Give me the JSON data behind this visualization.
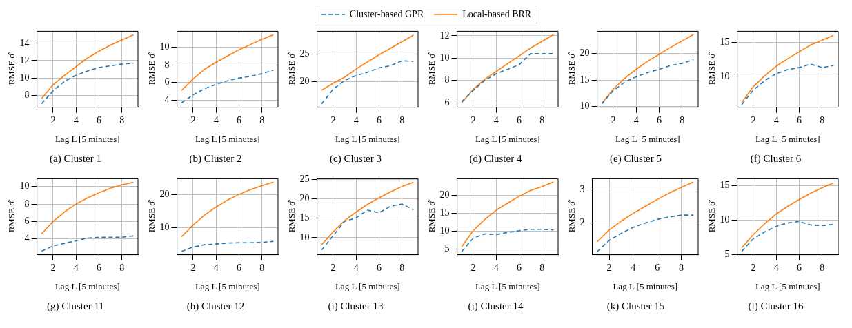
{
  "chart_data": [
    {
      "type": "line",
      "title": "(a) Cluster 1",
      "xlabel": "Lag L [5 minutes]",
      "ylabel": "RMSE σ̂",
      "x": [
        1,
        2,
        3,
        4,
        5,
        6,
        7,
        8,
        9
      ],
      "xlim": [
        0.6,
        9.4
      ],
      "xticks": [
        2,
        4,
        6,
        8
      ],
      "ylim": [
        6.6,
        15.4
      ],
      "yticks": [
        8,
        10,
        12,
        14
      ],
      "grid": true,
      "legend": "top",
      "marker": "none",
      "series": [
        {
          "name": "Cluster-based GPR",
          "color": "#1f77b4",
          "line_style": "dashed",
          "values": [
            7.0,
            8.5,
            9.6,
            10.3,
            10.8,
            11.2,
            11.4,
            11.6,
            11.7
          ]
        },
        {
          "name": "Local-based BRR",
          "color": "#ff7f0e",
          "line_style": "solid",
          "values": [
            7.6,
            9.2,
            10.3,
            11.3,
            12.3,
            13.1,
            13.8,
            14.4,
            15.0
          ]
        }
      ]
    },
    {
      "type": "line",
      "title": "(b) Cluster 2",
      "xlabel": "Lag L [5 minutes]",
      "ylabel": "RMSE σ̂",
      "x": [
        1,
        2,
        3,
        4,
        5,
        6,
        7,
        8,
        9
      ],
      "xlim": [
        0.6,
        9.4
      ],
      "xticks": [
        2,
        4,
        6,
        8
      ],
      "ylim": [
        3.2,
        11.8
      ],
      "yticks": [
        4,
        6,
        8,
        10
      ],
      "grid": true,
      "marker": "none",
      "series": [
        {
          "color": "#1f77b4",
          "line_style": "dashed",
          "values": [
            3.7,
            4.6,
            5.3,
            5.8,
            6.2,
            6.5,
            6.7,
            7.0,
            7.4
          ]
        },
        {
          "color": "#ff7f0e",
          "line_style": "solid",
          "values": [
            5.1,
            6.4,
            7.5,
            8.3,
            9.0,
            9.7,
            10.3,
            10.9,
            11.4
          ]
        }
      ]
    },
    {
      "type": "line",
      "title": "(c) Cluster 3",
      "xlabel": "Lag L [5 minutes]",
      "ylabel": "RMSE σ̂",
      "x": [
        1,
        2,
        3,
        4,
        5,
        6,
        7,
        8,
        9
      ],
      "xlim": [
        0.6,
        9.4
      ],
      "xticks": [
        2,
        4,
        6,
        8
      ],
      "ylim": [
        15.3,
        29.2
      ],
      "yticks": [
        20,
        25
      ],
      "grid": true,
      "marker": "none",
      "series": [
        {
          "color": "#1f77b4",
          "line_style": "dashed",
          "values": [
            15.9,
            18.6,
            20.2,
            21.1,
            21.7,
            22.5,
            22.9,
            23.8,
            23.7
          ]
        },
        {
          "color": "#ff7f0e",
          "line_style": "solid",
          "values": [
            18.4,
            19.7,
            20.8,
            22.3,
            23.6,
            24.9,
            26.1,
            27.3,
            28.5
          ]
        }
      ]
    },
    {
      "type": "line",
      "title": "(d) Cluster 4",
      "xlabel": "Lag L [5 minutes]",
      "ylabel": "RMSE σ̂",
      "x": [
        1,
        2,
        3,
        4,
        5,
        6,
        7,
        8,
        9
      ],
      "xlim": [
        0.6,
        9.4
      ],
      "xticks": [
        2,
        4,
        6,
        8
      ],
      "ylim": [
        5.6,
        12.4
      ],
      "yticks": [
        6,
        8,
        10,
        12
      ],
      "grid": true,
      "marker": "none",
      "series": [
        {
          "color": "#1f77b4",
          "line_style": "dashed",
          "values": [
            6.1,
            7.1,
            8.0,
            8.6,
            9.0,
            9.4,
            10.4,
            10.4,
            10.4
          ]
        },
        {
          "color": "#ff7f0e",
          "line_style": "solid",
          "values": [
            6.0,
            7.2,
            8.1,
            8.8,
            9.5,
            10.2,
            10.9,
            11.5,
            12.1
          ]
        }
      ]
    },
    {
      "type": "line",
      "title": "(e) Cluster 5",
      "xlabel": "Lag L [5 minutes]",
      "ylabel": "RMSE σ̂",
      "x": [
        1,
        2,
        3,
        4,
        5,
        6,
        7,
        8,
        9
      ],
      "xlim": [
        0.6,
        9.4
      ],
      "xticks": [
        2,
        4,
        6,
        8
      ],
      "ylim": [
        9.9,
        24.1
      ],
      "yticks": [
        10,
        15,
        20
      ],
      "grid": true,
      "marker": "none",
      "series": [
        {
          "color": "#1f77b4",
          "line_style": "dashed",
          "values": [
            10.5,
            13.0,
            14.6,
            15.6,
            16.4,
            17.0,
            17.7,
            18.1,
            18.8
          ]
        },
        {
          "color": "#ff7f0e",
          "line_style": "solid",
          "values": [
            10.6,
            13.3,
            15.3,
            17.0,
            18.5,
            19.8,
            21.1,
            22.3,
            23.5
          ]
        }
      ]
    },
    {
      "type": "line",
      "title": "(f) Cluster 6",
      "xlabel": "Lag L [5 minutes]",
      "ylabel": "RMSE σ̂",
      "x": [
        1,
        2,
        3,
        4,
        5,
        6,
        7,
        8,
        9
      ],
      "xlim": [
        0.6,
        9.4
      ],
      "xticks": [
        2,
        4,
        6,
        8
      ],
      "ylim": [
        5.5,
        16.6
      ],
      "yticks": [
        10,
        15
      ],
      "grid": true,
      "marker": "none",
      "series": [
        {
          "color": "#1f77b4",
          "line_style": "dashed",
          "values": [
            5.9,
            8.0,
            9.4,
            10.4,
            11.0,
            11.3,
            11.8,
            11.3,
            11.6
          ]
        },
        {
          "color": "#ff7f0e",
          "line_style": "solid",
          "values": [
            6.2,
            8.5,
            10.1,
            11.5,
            12.6,
            13.6,
            14.6,
            15.3,
            16.0
          ]
        }
      ]
    },
    {
      "type": "line",
      "title": "(g) Cluster 11",
      "xlabel": "Lag L [5 minutes]",
      "ylabel": "RMSE σ̂",
      "x": [
        1,
        2,
        3,
        4,
        5,
        6,
        7,
        8,
        9
      ],
      "xlim": [
        0.6,
        9.4
      ],
      "xticks": [
        2,
        4,
        6,
        8
      ],
      "ylim": [
        2.2,
        10.9
      ],
      "yticks": [
        4,
        6,
        8,
        10
      ],
      "grid": true,
      "marker": "none",
      "series": [
        {
          "color": "#1f77b4",
          "line_style": "dashed",
          "values": [
            2.6,
            3.2,
            3.5,
            3.8,
            4.1,
            4.2,
            4.2,
            4.2,
            4.35
          ]
        },
        {
          "color": "#ff7f0e",
          "line_style": "solid",
          "values": [
            4.6,
            6.0,
            7.1,
            8.0,
            8.7,
            9.3,
            9.8,
            10.2,
            10.5
          ]
        }
      ]
    },
    {
      "type": "line",
      "title": "(h) Cluster 12",
      "xlabel": "Lag L [5 minutes]",
      "ylabel": "RMSE σ̂",
      "x": [
        1,
        2,
        3,
        4,
        5,
        6,
        7,
        8,
        9
      ],
      "xlim": [
        0.6,
        9.4
      ],
      "xticks": [
        2,
        4,
        6,
        8
      ],
      "ylim": [
        1.9,
        24.7
      ],
      "yticks": [
        10,
        20
      ],
      "grid": true,
      "marker": "none",
      "series": [
        {
          "color": "#1f77b4",
          "line_style": "dashed",
          "values": [
            2.9,
            4.2,
            4.9,
            5.1,
            5.4,
            5.5,
            5.5,
            5.6,
            5.9
          ]
        },
        {
          "color": "#ff7f0e",
          "line_style": "solid",
          "values": [
            7.3,
            10.8,
            13.8,
            16.2,
            18.3,
            20.0,
            21.4,
            22.6,
            23.7
          ]
        }
      ]
    },
    {
      "type": "line",
      "title": "(i) Cluster 13",
      "xlabel": "Lag L [5 minutes]",
      "ylabel": "RMSE σ̂",
      "x": [
        1,
        2,
        3,
        4,
        5,
        6,
        7,
        8,
        9
      ],
      "xlim": [
        0.6,
        9.4
      ],
      "xticks": [
        2,
        4,
        6,
        8
      ],
      "ylim": [
        5.6,
        25.2
      ],
      "yticks": [
        10,
        15,
        20,
        25
      ],
      "grid": true,
      "marker": "none",
      "series": [
        {
          "color": "#1f77b4",
          "line_style": "dashed",
          "values": [
            6.8,
            10.5,
            14.2,
            15.1,
            17.1,
            16.4,
            18.1,
            18.7,
            17.2
          ]
        },
        {
          "color": "#ff7f0e",
          "line_style": "solid",
          "values": [
            8.2,
            11.5,
            14.4,
            16.6,
            18.6,
            20.3,
            21.8,
            23.2,
            24.3
          ]
        }
      ]
    },
    {
      "type": "line",
      "title": "(j) Cluster 14",
      "xlabel": "Lag L [5 minutes]",
      "ylabel": "RMSE σ̂",
      "x": [
        1,
        2,
        3,
        4,
        5,
        6,
        7,
        8,
        9
      ],
      "xlim": [
        0.6,
        9.4
      ],
      "xticks": [
        2,
        4,
        6,
        8
      ],
      "ylim": [
        3.4,
        24.6
      ],
      "yticks": [
        5,
        10,
        15,
        20
      ],
      "grid": true,
      "marker": "none",
      "series": [
        {
          "color": "#1f77b4",
          "line_style": "dashed",
          "values": [
            4.3,
            8.0,
            9.2,
            9.0,
            9.6,
            10.1,
            10.5,
            10.5,
            10.3
          ]
        },
        {
          "color": "#ff7f0e",
          "line_style": "solid",
          "values": [
            5.6,
            10.1,
            13.2,
            15.8,
            17.8,
            19.7,
            21.3,
            22.4,
            23.7
          ]
        }
      ]
    },
    {
      "type": "line",
      "title": "(k) Cluster 15",
      "xlabel": "Lag L [5 minutes]",
      "ylabel": "RMSE σ̂",
      "x": [
        1,
        2,
        3,
        4,
        5,
        6,
        7,
        8,
        9
      ],
      "xlim": [
        0.6,
        9.4
      ],
      "xticks": [
        2,
        4,
        6,
        8
      ],
      "ylim": [
        1.04,
        3.32
      ],
      "yticks": [
        2,
        3
      ],
      "grid": true,
      "marker": "none",
      "series": [
        {
          "color": "#1f77b4",
          "line_style": "dashed",
          "values": [
            1.13,
            1.47,
            1.68,
            1.86,
            1.99,
            2.1,
            2.17,
            2.23,
            2.23
          ]
        },
        {
          "color": "#ff7f0e",
          "line_style": "solid",
          "values": [
            1.43,
            1.78,
            2.05,
            2.28,
            2.49,
            2.7,
            2.89,
            3.06,
            3.22
          ]
        }
      ]
    },
    {
      "type": "line",
      "title": "(l) Cluster 16",
      "xlabel": "Lag L [5 minutes]",
      "ylabel": "RMSE σ̂",
      "x": [
        1,
        2,
        3,
        4,
        5,
        6,
        7,
        8,
        9
      ],
      "xlim": [
        0.6,
        9.4
      ],
      "xticks": [
        2,
        4,
        6,
        8
      ],
      "ylim": [
        5,
        16
      ],
      "yticks": [
        5,
        10,
        15
      ],
      "grid": true,
      "marker": "none",
      "series": [
        {
          "color": "#1f77b4",
          "line_style": "dashed",
          "values": [
            5.5,
            7.3,
            8.3,
            9.1,
            9.6,
            9.8,
            9.3,
            9.2,
            9.4
          ]
        },
        {
          "color": "#ff7f0e",
          "line_style": "solid",
          "values": [
            6.0,
            7.9,
            9.5,
            10.9,
            12.0,
            13.0,
            13.9,
            14.7,
            15.4
          ]
        }
      ]
    }
  ]
}
